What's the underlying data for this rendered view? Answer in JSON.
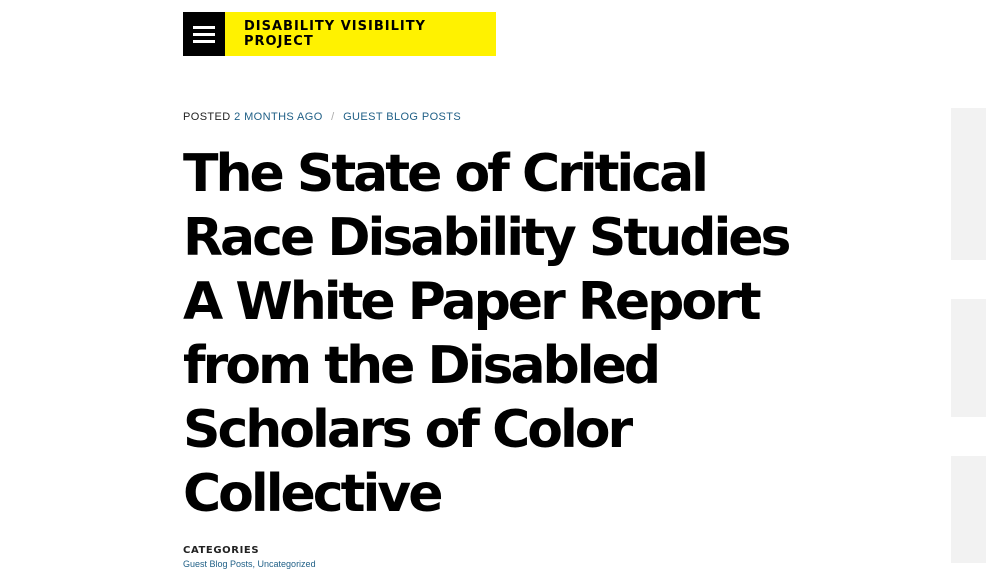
{
  "header": {
    "menu_icon": "hamburger-menu-icon",
    "logo_text": "DISABILITY VISIBILITY PROJECT"
  },
  "meta": {
    "posted_label": "POSTED",
    "posted_time": "2 MONTHS AGO",
    "separator": "/",
    "category": "GUEST BLOG POSTS"
  },
  "article": {
    "title": "The State of Critical Race Disability Studies A White Paper Report from the Disabled Scholars of Color Collective"
  },
  "categories": {
    "label": "CATEGORIES",
    "links": "Guest Blog Posts, Uncategorized"
  }
}
